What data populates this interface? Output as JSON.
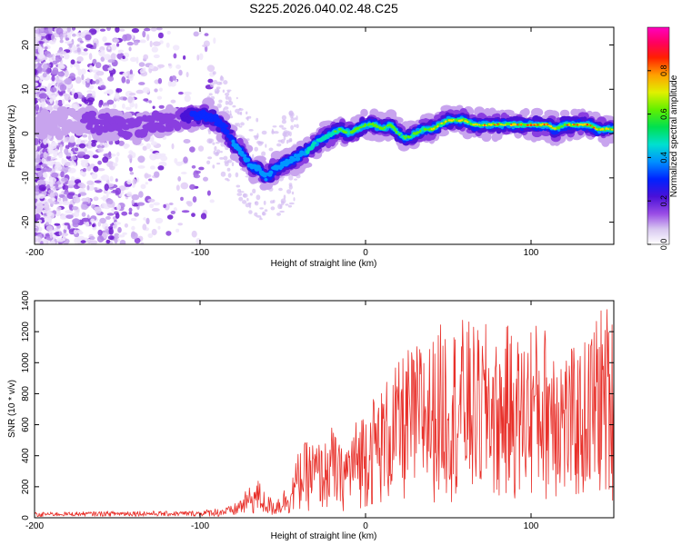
{
  "title": "S225.2026.040.02.48.C25",
  "chart_data": [
    {
      "type": "heatmap",
      "xlabel": "Height of straight line (km)",
      "ylabel": "Frequency (Hz)",
      "xlim": [
        -200,
        150
      ],
      "ylim": [
        -25,
        24
      ],
      "xticks": [
        -200,
        -100,
        0,
        100
      ],
      "yticks": [
        -20,
        -10,
        0,
        10,
        20
      ],
      "colorbar": {
        "label": "Normalized spectral amplitude",
        "range": [
          0,
          1
        ],
        "ticks": [
          "0.0",
          "0.2",
          "0.4",
          "0.6",
          "0.8"
        ]
      },
      "ridge": {
        "x": [
          -200,
          -190,
          -180,
          -170,
          -160,
          -150,
          -140,
          -130,
          -120,
          -110,
          -105,
          -100,
          -95,
          -90,
          -85,
          -80,
          -75,
          -70,
          -65,
          -60,
          -55,
          -50,
          -45,
          -40,
          -35,
          -30,
          -25,
          -20,
          -15,
          -10,
          -5,
          0,
          5,
          10,
          15,
          20,
          25,
          30,
          35,
          40,
          45,
          50,
          55,
          60,
          65,
          70,
          75,
          80,
          85,
          90,
          95,
          100,
          105,
          110,
          115,
          120,
          125,
          130,
          135,
          140,
          145,
          150
        ],
        "y": [
          2,
          3,
          2,
          3,
          2,
          2,
          1,
          2,
          3,
          3,
          4,
          4,
          4,
          3,
          1,
          -2,
          -4,
          -7,
          -8,
          -10,
          -8,
          -7,
          -6,
          -5,
          -4,
          -2,
          -1,
          0,
          1,
          0,
          1,
          2,
          2,
          1,
          2,
          0,
          -1,
          0,
          1,
          1,
          2,
          3,
          3,
          3,
          2,
          2,
          2,
          2,
          2,
          2,
          2,
          2,
          2,
          2,
          1,
          2,
          2,
          2,
          2,
          1,
          1,
          1
        ]
      }
    },
    {
      "type": "line",
      "xlabel": "Height of straight line (km)",
      "ylabel": "SNR (10 * v/v)",
      "xlim": [
        -200,
        150
      ],
      "ylim": [
        0,
        1400
      ],
      "xticks": [
        -200,
        -100,
        0,
        100
      ],
      "yticks": [
        0,
        200,
        400,
        600,
        800,
        1000,
        1200,
        1400
      ],
      "color": "#e8302a",
      "envelope": {
        "x": [
          -200,
          -180,
          -160,
          -140,
          -120,
          -100,
          -90,
          -80,
          -70,
          -65,
          -60,
          -55,
          -50,
          -45,
          -40,
          -35,
          -30,
          -25,
          -20,
          -15,
          -10,
          -5,
          0,
          5,
          10,
          15,
          20,
          25,
          30,
          35,
          40,
          45,
          50,
          55,
          60,
          65,
          70,
          75,
          80,
          85,
          90,
          95,
          100,
          105,
          110,
          115,
          120,
          125,
          130,
          135,
          140,
          145,
          150
        ],
        "y": [
          30,
          30,
          35,
          40,
          35,
          40,
          60,
          80,
          200,
          250,
          150,
          120,
          180,
          250,
          450,
          500,
          500,
          480,
          600,
          450,
          550,
          650,
          750,
          800,
          850,
          950,
          1000,
          1100,
          1100,
          1200,
          1150,
          1250,
          1300,
          1250,
          1300,
          1250,
          1200,
          1300,
          1100,
          1250,
          1200,
          1150,
          1300,
          1250,
          1250,
          1300,
          1100,
          1100,
          1100,
          1200,
          1350,
          1400,
          1300
        ]
      }
    }
  ]
}
